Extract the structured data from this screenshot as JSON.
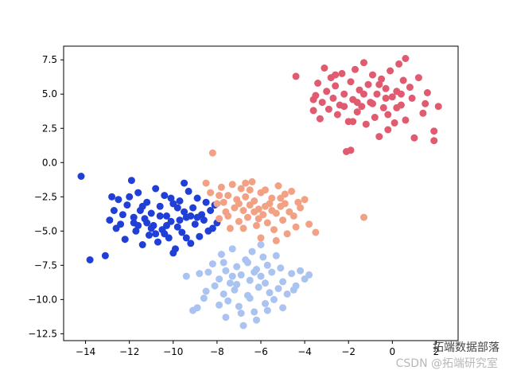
{
  "chart_data": {
    "type": "scatter",
    "xlim": [
      -15,
      3
    ],
    "ylim": [
      -13,
      8.5
    ],
    "xticks": [
      -14,
      -12,
      -10,
      -8,
      -6,
      -4,
      -2,
      0,
      2
    ],
    "yticks": [
      -12.5,
      -10.0,
      -7.5,
      -5.0,
      -2.5,
      0.0,
      2.5,
      5.0,
      7.5
    ],
    "xtick_labels": [
      "−14",
      "−12",
      "−10",
      "−8",
      "−6",
      "−4",
      "−2",
      "0",
      "2"
    ],
    "ytick_labels": [
      "−12.5",
      "−10.0",
      "−7.5",
      "−5.0",
      "−2.5",
      "0.0",
      "2.5",
      "5.0",
      "7.5"
    ],
    "grid": false,
    "series": [
      {
        "color": "#1f3fd6",
        "points": [
          [
            -14.2,
            -1.0
          ],
          [
            -13.8,
            -7.1
          ],
          [
            -13.1,
            -6.8
          ],
          [
            -12.9,
            -4.2
          ],
          [
            -12.8,
            -2.5
          ],
          [
            -12.6,
            -4.8
          ],
          [
            -12.5,
            -2.7
          ],
          [
            -12.3,
            -3.8
          ],
          [
            -12.2,
            -5.6
          ],
          [
            -12.1,
            -3.1
          ],
          [
            -11.9,
            -1.3
          ],
          [
            -11.8,
            -4.4
          ],
          [
            -11.7,
            -5.0
          ],
          [
            -11.6,
            -2.2
          ],
          [
            -11.5,
            -3.5
          ],
          [
            -11.4,
            -6.0
          ],
          [
            -11.3,
            -4.1
          ],
          [
            -11.2,
            -2.9
          ],
          [
            -11.1,
            -5.3
          ],
          [
            -11.0,
            -3.7
          ],
          [
            -10.9,
            -4.6
          ],
          [
            -10.8,
            -1.9
          ],
          [
            -10.7,
            -5.8
          ],
          [
            -10.6,
            -3.2
          ],
          [
            -10.5,
            -4.9
          ],
          [
            -10.4,
            -2.4
          ],
          [
            -10.3,
            -3.9
          ],
          [
            -10.2,
            -5.5
          ],
          [
            -10.1,
            -4.3
          ],
          [
            -10.0,
            -3.0
          ],
          [
            -9.9,
            -6.3
          ],
          [
            -9.8,
            -4.7
          ],
          [
            -9.7,
            -2.8
          ],
          [
            -9.6,
            -5.1
          ],
          [
            -9.5,
            -3.6
          ],
          [
            -9.4,
            -4.0
          ],
          [
            -9.3,
            -2.1
          ],
          [
            -9.2,
            -5.9
          ],
          [
            -9.1,
            -3.3
          ],
          [
            -9.0,
            -4.5
          ],
          [
            -8.9,
            -2.6
          ],
          [
            -8.8,
            -5.4
          ],
          [
            -8.7,
            -3.8
          ],
          [
            -8.6,
            -4.2
          ],
          [
            -8.5,
            -2.9
          ],
          [
            -8.4,
            -5.0
          ],
          [
            -8.3,
            -3.5
          ],
          [
            -8.2,
            -4.8
          ],
          [
            -8.1,
            -3.1
          ],
          [
            -8.0,
            -4.4
          ],
          [
            -11.8,
            -4.0
          ],
          [
            -11.0,
            -4.8
          ],
          [
            -10.3,
            -4.6
          ],
          [
            -9.7,
            -4.2
          ],
          [
            -9.2,
            -3.9
          ],
          [
            -10.6,
            -3.9
          ],
          [
            -11.4,
            -3.2
          ],
          [
            -12.0,
            -2.5
          ],
          [
            -10.0,
            -6.6
          ],
          [
            -9.5,
            -1.5
          ],
          [
            -10.8,
            -5.2
          ],
          [
            -9.8,
            -3.3
          ],
          [
            -11.2,
            -4.4
          ],
          [
            -10.4,
            -5.2
          ],
          [
            -9.4,
            -5.5
          ],
          [
            -8.9,
            -4.0
          ],
          [
            -10.1,
            -2.6
          ],
          [
            -11.6,
            -4.6
          ],
          [
            -12.4,
            -4.5
          ],
          [
            -12.7,
            -3.5
          ]
        ]
      },
      {
        "color": "#f2a185",
        "points": [
          [
            -8.2,
            0.7
          ],
          [
            -8.5,
            -1.5
          ],
          [
            -8.3,
            -2.2
          ],
          [
            -8.0,
            -3.0
          ],
          [
            -7.9,
            -4.1
          ],
          [
            -7.8,
            -1.8
          ],
          [
            -7.7,
            -2.9
          ],
          [
            -7.6,
            -3.6
          ],
          [
            -7.5,
            -2.4
          ],
          [
            -7.4,
            -4.8
          ],
          [
            -7.3,
            -1.6
          ],
          [
            -7.2,
            -3.3
          ],
          [
            -7.1,
            -2.7
          ],
          [
            -7.0,
            -4.3
          ],
          [
            -6.9,
            -1.9
          ],
          [
            -6.8,
            -3.5
          ],
          [
            -6.7,
            -2.5
          ],
          [
            -6.6,
            -4.0
          ],
          [
            -6.5,
            -3.1
          ],
          [
            -6.4,
            -1.4
          ],
          [
            -6.3,
            -2.8
          ],
          [
            -6.2,
            -4.6
          ],
          [
            -6.1,
            -3.4
          ],
          [
            -6.0,
            -2.2
          ],
          [
            -5.9,
            -3.8
          ],
          [
            -5.8,
            -2.0
          ],
          [
            -5.7,
            -4.4
          ],
          [
            -5.6,
            -3.0
          ],
          [
            -5.5,
            -2.6
          ],
          [
            -5.4,
            -4.9
          ],
          [
            -5.3,
            -3.7
          ],
          [
            -5.2,
            -1.7
          ],
          [
            -5.1,
            -3.2
          ],
          [
            -5.0,
            -4.2
          ],
          [
            -4.9,
            -2.3
          ],
          [
            -4.8,
            -5.2
          ],
          [
            -4.7,
            -3.6
          ],
          [
            -4.6,
            -2.1
          ],
          [
            -4.5,
            -3.9
          ],
          [
            -4.4,
            -4.7
          ],
          [
            -4.3,
            -2.9
          ],
          [
            -4.2,
            -3.3
          ],
          [
            -4.0,
            -2.7
          ],
          [
            -3.8,
            -4.5
          ],
          [
            -3.5,
            -5.1
          ],
          [
            -1.3,
            -4.0
          ],
          [
            -6.8,
            -4.8
          ],
          [
            -6.0,
            -5.5
          ],
          [
            -5.3,
            -5.7
          ],
          [
            -7.5,
            -3.9
          ],
          [
            -6.5,
            -2.0
          ],
          [
            -5.8,
            -3.2
          ],
          [
            -7.0,
            -3.0
          ],
          [
            -6.3,
            -3.6
          ],
          [
            -5.5,
            -3.5
          ],
          [
            -4.9,
            -3.0
          ],
          [
            -6.7,
            -1.5
          ],
          [
            -5.1,
            -2.6
          ],
          [
            -7.9,
            -2.4
          ],
          [
            -6.1,
            -4.1
          ]
        ]
      },
      {
        "color": "#aac3f0",
        "points": [
          [
            -9.1,
            -10.8
          ],
          [
            -8.9,
            -10.6
          ],
          [
            -8.6,
            -9.9
          ],
          [
            -8.4,
            -8.0
          ],
          [
            -8.2,
            -7.4
          ],
          [
            -8.1,
            -9.0
          ],
          [
            -7.9,
            -8.5
          ],
          [
            -7.8,
            -6.7
          ],
          [
            -7.7,
            -9.6
          ],
          [
            -7.6,
            -7.9
          ],
          [
            -7.5,
            -10.1
          ],
          [
            -7.4,
            -8.8
          ],
          [
            -7.3,
            -6.3
          ],
          [
            -7.2,
            -9.3
          ],
          [
            -7.1,
            -7.6
          ],
          [
            -7.0,
            -10.5
          ],
          [
            -6.9,
            -8.2
          ],
          [
            -6.8,
            -11.9
          ],
          [
            -6.7,
            -7.1
          ],
          [
            -6.6,
            -9.7
          ],
          [
            -6.5,
            -8.6
          ],
          [
            -6.4,
            -6.5
          ],
          [
            -6.3,
            -10.9
          ],
          [
            -6.2,
            -7.8
          ],
          [
            -6.1,
            -9.1
          ],
          [
            -6.0,
            -8.3
          ],
          [
            -5.9,
            -6.9
          ],
          [
            -5.8,
            -10.3
          ],
          [
            -5.7,
            -7.5
          ],
          [
            -5.6,
            -9.5
          ],
          [
            -5.5,
            -8.0
          ],
          [
            -5.4,
            -10.0
          ],
          [
            -5.3,
            -6.8
          ],
          [
            -5.2,
            -9.2
          ],
          [
            -5.1,
            -7.7
          ],
          [
            -5.0,
            -8.7
          ],
          [
            -4.8,
            -9.6
          ],
          [
            -4.6,
            -8.1
          ],
          [
            -4.4,
            -9.0
          ],
          [
            -4.2,
            -7.9
          ],
          [
            -4.0,
            -8.5
          ],
          [
            -3.8,
            -8.2
          ],
          [
            -9.4,
            -8.3
          ],
          [
            -8.8,
            -8.1
          ],
          [
            -8.5,
            -9.4
          ],
          [
            -7.6,
            -11.3
          ],
          [
            -6.9,
            -11.0
          ],
          [
            -6.2,
            -11.5
          ],
          [
            -7.3,
            -8.3
          ],
          [
            -6.6,
            -7.3
          ],
          [
            -6.0,
            -6.0
          ],
          [
            -5.7,
            -10.8
          ],
          [
            -5.0,
            -10.6
          ],
          [
            -4.5,
            -9.3
          ],
          [
            -7.9,
            -10.4
          ],
          [
            -6.5,
            -9.9
          ],
          [
            -7.1,
            -8.9
          ],
          [
            -5.8,
            -8.8
          ],
          [
            -6.3,
            -8.0
          ],
          [
            -7.7,
            -7.3
          ]
        ]
      },
      {
        "color": "#e05a70",
        "points": [
          [
            -4.4,
            6.3
          ],
          [
            -3.6,
            3.8
          ],
          [
            -3.5,
            4.9
          ],
          [
            -3.4,
            5.8
          ],
          [
            -3.3,
            3.2
          ],
          [
            -3.2,
            4.4
          ],
          [
            -3.1,
            6.9
          ],
          [
            -3.0,
            5.2
          ],
          [
            -2.9,
            3.9
          ],
          [
            -2.8,
            6.2
          ],
          [
            -2.7,
            4.7
          ],
          [
            -2.6,
            5.6
          ],
          [
            -2.5,
            3.5
          ],
          [
            -2.4,
            4.2
          ],
          [
            -2.3,
            6.5
          ],
          [
            -2.2,
            5.0
          ],
          [
            -2.1,
            0.8
          ],
          [
            -2.0,
            3.0
          ],
          [
            -1.9,
            5.9
          ],
          [
            -1.8,
            4.6
          ],
          [
            -1.7,
            6.8
          ],
          [
            -1.6,
            3.7
          ],
          [
            -1.5,
            5.3
          ],
          [
            -1.4,
            4.1
          ],
          [
            -1.3,
            7.3
          ],
          [
            -1.2,
            2.8
          ],
          [
            -1.1,
            5.7
          ],
          [
            -1.0,
            4.4
          ],
          [
            -0.9,
            6.4
          ],
          [
            -0.8,
            3.3
          ],
          [
            -0.7,
            5.0
          ],
          [
            -0.6,
            1.9
          ],
          [
            -0.5,
            6.1
          ],
          [
            -0.4,
            4.0
          ],
          [
            -0.3,
            5.4
          ],
          [
            -0.2,
            3.5
          ],
          [
            -0.1,
            6.7
          ],
          [
            0.0,
            4.8
          ],
          [
            0.1,
            2.9
          ],
          [
            0.2,
            5.2
          ],
          [
            0.3,
            7.2
          ],
          [
            0.4,
            4.2
          ],
          [
            0.5,
            6.0
          ],
          [
            0.6,
            3.1
          ],
          [
            0.8,
            5.5
          ],
          [
            0.9,
            4.7
          ],
          [
            1.0,
            1.8
          ],
          [
            1.2,
            6.2
          ],
          [
            1.4,
            3.6
          ],
          [
            1.6,
            5.1
          ],
          [
            1.9,
            2.3
          ],
          [
            1.9,
            1.6
          ],
          [
            2.1,
            4.1
          ],
          [
            -1.9,
            0.9
          ],
          [
            0.6,
            7.6
          ],
          [
            -0.9,
            4.3
          ],
          [
            -1.6,
            4.4
          ],
          [
            -0.3,
            4.7
          ],
          [
            0.2,
            4.0
          ],
          [
            -2.2,
            4.1
          ],
          [
            -1.3,
            5.0
          ],
          [
            -0.6,
            5.7
          ],
          [
            0.4,
            5.0
          ],
          [
            -2.6,
            6.4
          ],
          [
            1.5,
            4.3
          ],
          [
            -3.6,
            4.6
          ],
          [
            -1.8,
            3.0
          ],
          [
            -0.2,
            2.4
          ]
        ]
      }
    ]
  },
  "watermark": {
    "line1": "拓端数据部落",
    "line2": "CSDN @拓端研究室"
  }
}
